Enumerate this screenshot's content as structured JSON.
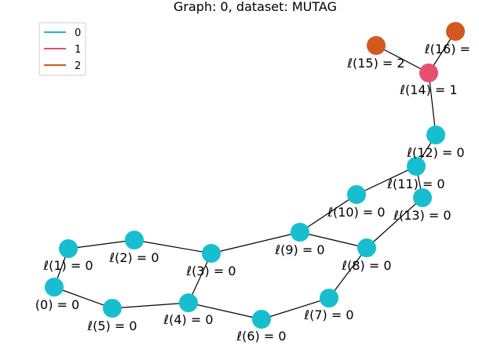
{
  "title": "Graph: 0, dataset: MUTAG",
  "colors": {
    "0": "#17becf",
    "1": "#e6506e",
    "2": "#d2581e"
  },
  "legend": [
    {
      "key": "0",
      "label": "0",
      "color": "#17becf"
    },
    {
      "key": "1",
      "label": "1",
      "color": "#e6506e"
    },
    {
      "key": "2",
      "label": "2",
      "color": "#d2581e"
    }
  ],
  "nodes": [
    {
      "id": 0,
      "cls": "0",
      "label": "(0) =  0"
    },
    {
      "id": 1,
      "cls": "0",
      "label": "ℓ(1) =  0"
    },
    {
      "id": 2,
      "cls": "0",
      "label": "ℓ(2) =  0"
    },
    {
      "id": 3,
      "cls": "0",
      "label": "ℓ(3) =  0"
    },
    {
      "id": 4,
      "cls": "0",
      "label": "ℓ(4) =  0"
    },
    {
      "id": 5,
      "cls": "0",
      "label": "ℓ(5) =  0"
    },
    {
      "id": 6,
      "cls": "0",
      "label": "ℓ(6) =  0"
    },
    {
      "id": 7,
      "cls": "0",
      "label": "ℓ(7) =  0"
    },
    {
      "id": 8,
      "cls": "0",
      "label": "ℓ(8) =  0"
    },
    {
      "id": 9,
      "cls": "0",
      "label": "ℓ(9) =  0"
    },
    {
      "id": 10,
      "cls": "0",
      "label": "ℓ(10) =  0"
    },
    {
      "id": 11,
      "cls": "0",
      "label": "ℓ(11) =  0"
    },
    {
      "id": 12,
      "cls": "0",
      "label": "ℓ(12) =  0"
    },
    {
      "id": 13,
      "cls": "0",
      "label": "ℓ(13) =  0"
    },
    {
      "id": 14,
      "cls": "1",
      "label": "ℓ(14) =  1"
    },
    {
      "id": 15,
      "cls": "2",
      "label": "ℓ(15) =  2"
    },
    {
      "id": 16,
      "cls": "2",
      "label": "ℓ(16) ="
    }
  ],
  "edges": [
    [
      0,
      1
    ],
    [
      1,
      2
    ],
    [
      2,
      3
    ],
    [
      3,
      4
    ],
    [
      4,
      5
    ],
    [
      5,
      0
    ],
    [
      4,
      6
    ],
    [
      6,
      7
    ],
    [
      7,
      8
    ],
    [
      8,
      9
    ],
    [
      9,
      3
    ],
    [
      9,
      10
    ],
    [
      10,
      11
    ],
    [
      11,
      13
    ],
    [
      13,
      8
    ],
    [
      11,
      12
    ],
    [
      12,
      14
    ],
    [
      14,
      15
    ],
    [
      14,
      16
    ]
  ]
}
